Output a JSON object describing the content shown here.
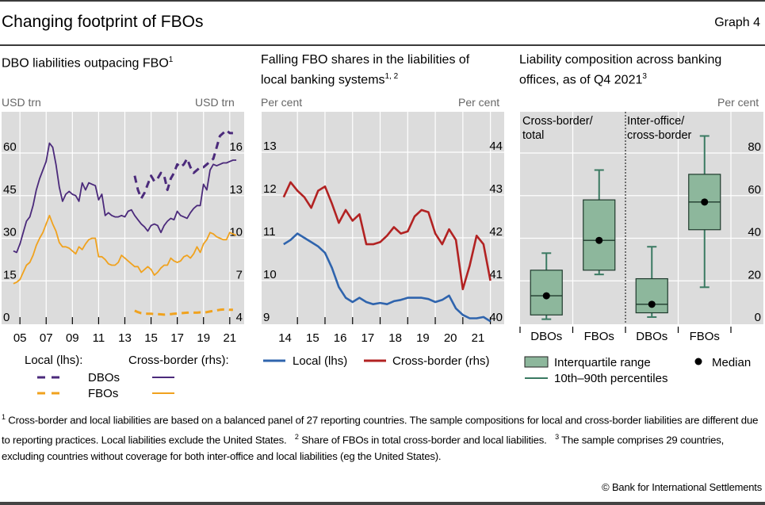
{
  "header": {
    "title": "Changing footprint of FBOs",
    "graph_number": "Graph 4"
  },
  "panels": [
    {
      "title": "DBO liabilities outpacing FBO",
      "title_sup": "1",
      "unit_left": "USD trn",
      "unit_right": "USD trn"
    },
    {
      "title_line1": "Falling FBO shares in the liabilities of",
      "title_line2": "local banking systems",
      "title_sup": "1, 2",
      "unit_left": "Per cent",
      "unit_right": "Per cent"
    },
    {
      "title_line1": "Liability composition across banking",
      "title_line2": "offices, as of Q4 2021",
      "title_sup": "3",
      "unit_right": "Per cent"
    }
  ],
  "legend1": {
    "local_header": "Local (lhs):",
    "cross_header": "Cross-border (rhs):",
    "dbos": "DBOs",
    "fbos": "FBOs"
  },
  "legend2": {
    "local": "Local (lhs)",
    "cross": "Cross-border (rhs)"
  },
  "legend3": {
    "iqr": "Interquartile range",
    "median": "Median",
    "pct": "10th–90th percentiles"
  },
  "footnotes": {
    "n1_mark": "1",
    "n1": "Cross-border and local liabilities are based on a balanced panel of 27 reporting countries. The sample compositions for local and cross-border liabilities are different due to reporting practices. Local liabilities exclude the United States.",
    "n2_mark": "2",
    "n2": "Share of FBOs in total cross-border and local liabilities.",
    "n3_mark": "3",
    "n3": "The sample comprises 29 countries, excluding countries without coverage for both inter-office and local liabilities (eg the United States)."
  },
  "copyright": "© Bank for International Settlements",
  "colors": {
    "dbo": "#4b2a7b",
    "fbo": "#f0a21e",
    "local_blue": "#2f64ad",
    "cross_red": "#b22222",
    "box_fill": "#8db79c",
    "box_line": "#3a7a62",
    "plot_bg": "#dcdcdc"
  },
  "chart_data": [
    {
      "type": "line",
      "title": "DBO liabilities outpacing FBO",
      "ylabel_left": "USD trn",
      "ylabel_right": "USD trn",
      "x_ticks": [
        "05",
        "07",
        "09",
        "11",
        "13",
        "15",
        "17",
        "19",
        "21"
      ],
      "xlim": [
        2004.0,
        2022.0
      ],
      "yleft": {
        "lim": [
          0,
          75
        ],
        "ticks": [
          0,
          15,
          30,
          45,
          60
        ]
      },
      "yright": {
        "lim": [
          4,
          19
        ],
        "ticks": [
          4,
          7,
          10,
          13,
          16
        ]
      },
      "series": [
        {
          "name": "Local DBOs (lhs)",
          "axis": "left",
          "style": "dashed",
          "color_key": "dbo",
          "x": [
            2013.75,
            2014.0,
            2014.25,
            2014.5,
            2014.75,
            2015.0,
            2015.25,
            2015.5,
            2015.75,
            2016.0,
            2016.25,
            2016.5,
            2016.75,
            2017.0,
            2017.25,
            2017.5,
            2017.75,
            2018.0,
            2018.25,
            2018.5,
            2018.75,
            2019.0,
            2019.25,
            2019.5,
            2019.75,
            2020.0,
            2020.25,
            2020.5,
            2020.75,
            2021.0,
            2021.25
          ],
          "y": [
            52,
            47,
            44,
            46,
            49,
            52,
            50,
            51,
            53,
            52,
            47,
            51,
            53,
            56,
            55,
            56,
            58,
            55,
            53,
            54,
            55,
            55,
            56,
            57,
            58,
            62,
            66,
            67,
            68,
            67,
            67
          ]
        },
        {
          "name": "Local FBOs (lhs)",
          "axis": "left",
          "style": "dashed",
          "color_key": "fbo",
          "x": [
            2013.75,
            2014.0,
            2014.25,
            2014.5,
            2014.75,
            2015.0,
            2015.25,
            2015.5,
            2015.75,
            2016.0,
            2016.25,
            2016.5,
            2016.75,
            2017.0,
            2017.25,
            2017.5,
            2017.75,
            2018.0,
            2018.25,
            2018.5,
            2018.75,
            2019.0,
            2019.25,
            2019.5,
            2019.75,
            2020.0,
            2020.25,
            2020.5,
            2020.75,
            2021.0,
            2021.25
          ],
          "y": [
            4.5,
            4.0,
            3.6,
            3.5,
            3.4,
            3.4,
            3.3,
            3.3,
            3.2,
            3.1,
            3.2,
            3.3,
            3.4,
            3.5,
            3.6,
            3.7,
            3.8,
            3.8,
            3.8,
            3.8,
            3.9,
            3.9,
            4.0,
            4.2,
            4.4,
            4.6,
            4.8,
            4.9,
            4.9,
            4.8,
            4.8
          ]
        },
        {
          "name": "Cross-border DBOs (rhs)",
          "axis": "right",
          "style": "solid",
          "color_key": "dbo",
          "x": [
            2004.5,
            2004.75,
            2005.0,
            2005.25,
            2005.5,
            2005.75,
            2006.0,
            2006.25,
            2006.5,
            2006.75,
            2007.0,
            2007.25,
            2007.5,
            2007.75,
            2008.0,
            2008.25,
            2008.5,
            2008.75,
            2009.0,
            2009.25,
            2009.5,
            2009.75,
            2010.0,
            2010.25,
            2010.5,
            2010.75,
            2011.0,
            2011.25,
            2011.5,
            2011.75,
            2012.0,
            2012.25,
            2012.5,
            2012.75,
            2013.0,
            2013.25,
            2013.5,
            2013.75,
            2014.0,
            2014.25,
            2014.5,
            2014.75,
            2015.0,
            2015.25,
            2015.5,
            2015.75,
            2016.0,
            2016.25,
            2016.5,
            2016.75,
            2017.0,
            2017.25,
            2017.5,
            2017.75,
            2018.0,
            2018.25,
            2018.5,
            2018.75,
            2019.0,
            2019.25,
            2019.5,
            2019.75,
            2020.0,
            2020.25,
            2020.5,
            2020.75,
            2021.0,
            2021.25,
            2021.5
          ],
          "y": [
            9.1,
            9.0,
            9.6,
            10.4,
            11.2,
            11.5,
            12.3,
            13.4,
            14.2,
            14.8,
            15.4,
            16.7,
            16.4,
            15.2,
            13.6,
            12.6,
            13.1,
            13.3,
            13.1,
            13.0,
            12.6,
            13.9,
            13.4,
            13.9,
            13.8,
            13.7,
            12.7,
            13.1,
            11.6,
            11.8,
            11.6,
            11.5,
            11.5,
            11.6,
            11.5,
            11.9,
            12.0,
            11.6,
            11.3,
            11.0,
            10.8,
            10.5,
            10.9,
            11.0,
            10.9,
            10.4,
            10.9,
            11.2,
            11.4,
            11.3,
            11.9,
            11.6,
            11.5,
            11.4,
            11.8,
            12.1,
            12.3,
            12.3,
            13.8,
            13.4,
            14.8,
            15.2,
            15.1,
            15.2,
            15.3,
            15.3,
            15.4,
            15.5,
            15.5
          ]
        },
        {
          "name": "Cross-border FBOs (rhs)",
          "axis": "right",
          "style": "solid",
          "color_key": "fbo",
          "x": [
            2004.5,
            2004.75,
            2005.0,
            2005.25,
            2005.5,
            2005.75,
            2006.0,
            2006.25,
            2006.5,
            2006.75,
            2007.0,
            2007.25,
            2007.5,
            2007.75,
            2008.0,
            2008.25,
            2008.5,
            2008.75,
            2009.0,
            2009.25,
            2009.5,
            2009.75,
            2010.0,
            2010.25,
            2010.5,
            2010.75,
            2011.0,
            2011.25,
            2011.5,
            2011.75,
            2012.0,
            2012.25,
            2012.5,
            2012.75,
            2013.0,
            2013.25,
            2013.5,
            2013.75,
            2014.0,
            2014.25,
            2014.5,
            2014.75,
            2015.0,
            2015.25,
            2015.5,
            2015.75,
            2016.0,
            2016.25,
            2016.5,
            2016.75,
            2017.0,
            2017.25,
            2017.5,
            2017.75,
            2018.0,
            2018.25,
            2018.5,
            2018.75,
            2019.0,
            2019.25,
            2019.5,
            2019.75,
            2020.0,
            2020.25,
            2020.5,
            2020.75,
            2021.0,
            2021.25,
            2021.5
          ],
          "y": [
            6.8,
            6.9,
            7.1,
            7.6,
            8.1,
            8.3,
            8.8,
            9.5,
            10.0,
            10.4,
            11.0,
            11.6,
            11.0,
            10.5,
            9.7,
            9.4,
            9.4,
            9.3,
            9.1,
            8.9,
            9.4,
            9.2,
            9.6,
            9.9,
            10.0,
            10.0,
            8.7,
            8.7,
            8.5,
            8.2,
            8.1,
            8.1,
            8.3,
            8.8,
            8.6,
            8.4,
            8.2,
            8.0,
            8.0,
            7.6,
            7.8,
            8.0,
            7.8,
            7.4,
            7.6,
            7.9,
            8.1,
            8.1,
            8.6,
            8.4,
            8.3,
            8.4,
            8.7,
            8.8,
            8.6,
            8.9,
            9.4,
            9.0,
            9.6,
            9.9,
            10.4,
            10.3,
            10.1,
            10.0,
            9.9,
            9.9,
            10.4,
            10.3,
            10.2
          ]
        }
      ]
    },
    {
      "type": "line",
      "title": "Falling FBO shares in the liabilities of local banking systems",
      "ylabel_left": "Per cent",
      "ylabel_right": "Per cent",
      "x_ticks": [
        "14",
        "15",
        "16",
        "17",
        "18",
        "19",
        "20",
        "21"
      ],
      "xlim": [
        2013.0,
        2022.0
      ],
      "yleft": {
        "lim": [
          9,
          13.8
        ],
        "ticks": [
          9,
          10,
          11,
          12,
          13
        ]
      },
      "yright": {
        "lim": [
          40,
          44.8
        ],
        "ticks": [
          40,
          41,
          42,
          43,
          44
        ]
      },
      "series": [
        {
          "name": "Local (lhs)",
          "axis": "left",
          "color_key": "local_blue",
          "x": [
            2014.0,
            2014.25,
            2014.5,
            2014.75,
            2015.0,
            2015.25,
            2015.5,
            2015.75,
            2016.0,
            2016.25,
            2016.5,
            2016.75,
            2017.0,
            2017.25,
            2017.5,
            2017.75,
            2018.0,
            2018.25,
            2018.5,
            2018.75,
            2019.0,
            2019.25,
            2019.5,
            2019.75,
            2020.0,
            2020.25,
            2020.5,
            2020.75,
            2021.0,
            2021.25,
            2021.5
          ],
          "y": [
            10.85,
            10.95,
            11.1,
            11.0,
            10.9,
            10.8,
            10.65,
            10.3,
            9.85,
            9.6,
            9.5,
            9.6,
            9.5,
            9.45,
            9.48,
            9.45,
            9.52,
            9.55,
            9.6,
            9.6,
            9.6,
            9.57,
            9.5,
            9.55,
            9.65,
            9.35,
            9.2,
            9.12,
            9.12,
            9.15,
            9.05
          ]
        },
        {
          "name": "Cross-border (rhs)",
          "axis": "right",
          "color_key": "cross_red",
          "x": [
            2014.0,
            2014.25,
            2014.5,
            2014.75,
            2015.0,
            2015.25,
            2015.5,
            2015.75,
            2016.0,
            2016.25,
            2016.5,
            2016.75,
            2017.0,
            2017.25,
            2017.5,
            2017.75,
            2018.0,
            2018.25,
            2018.5,
            2018.75,
            2019.0,
            2019.25,
            2019.5,
            2019.75,
            2020.0,
            2020.25,
            2020.5,
            2020.75,
            2021.0,
            2021.25,
            2021.5
          ],
          "y": [
            42.95,
            43.3,
            43.1,
            42.95,
            42.7,
            43.1,
            43.2,
            42.8,
            42.35,
            42.65,
            42.4,
            42.55,
            41.85,
            41.85,
            41.9,
            42.05,
            42.25,
            42.1,
            42.15,
            42.5,
            42.65,
            42.6,
            42.1,
            41.85,
            42.2,
            41.95,
            40.8,
            41.35,
            42.05,
            41.85,
            41.0
          ]
        }
      ]
    },
    {
      "type": "boxplot",
      "title": "Liability composition across banking offices, as of Q4 2021",
      "ylabel_right": "Per cent",
      "ylim": [
        0,
        95
      ],
      "y_ticks": [
        0,
        20,
        40,
        60,
        80
      ],
      "groups": [
        "Cross-border/ total",
        "Inter-office/ cross-border"
      ],
      "group_label_lines": [
        [
          "Cross-border/",
          "total"
        ],
        [
          "Inter-office/",
          "cross-border"
        ]
      ],
      "categories": [
        "DBOs",
        "FBOs",
        "DBOs",
        "FBOs"
      ],
      "boxes": [
        {
          "group": 0,
          "category": "DBOs",
          "p10": 2,
          "q1": 4,
          "median": 13,
          "q3": 25,
          "p90": 33
        },
        {
          "group": 0,
          "category": "FBOs",
          "p10": 23,
          "q1": 25,
          "median": 39,
          "q3": 58,
          "p90": 72
        },
        {
          "group": 1,
          "category": "DBOs",
          "p10": 3,
          "q1": 5,
          "median": 9,
          "q3": 21,
          "p90": 36
        },
        {
          "group": 1,
          "category": "FBOs",
          "p10": 17,
          "q1": 44,
          "median": 57,
          "q3": 70,
          "p90": 88
        }
      ]
    }
  ]
}
